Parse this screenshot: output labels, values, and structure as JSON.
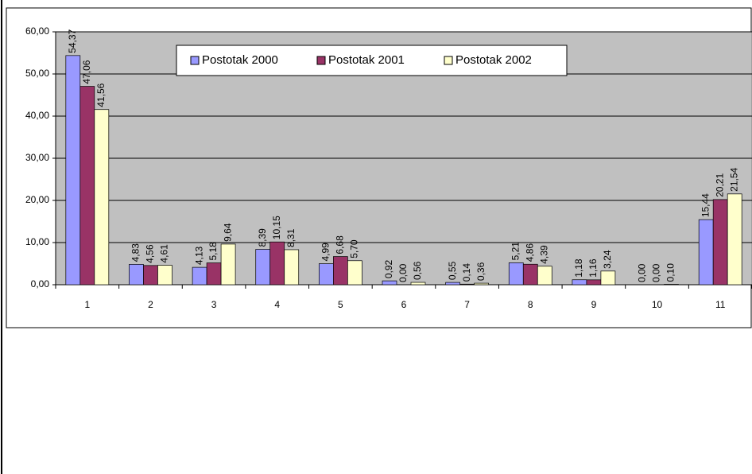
{
  "chart_data": {
    "type": "bar",
    "categories": [
      "1",
      "2",
      "3",
      "4",
      "5",
      "6",
      "7",
      "8",
      "9",
      "10",
      "11"
    ],
    "series": [
      {
        "name": "Postotak 2000",
        "color": "#9999ff",
        "values": [
          54.37,
          4.83,
          4.13,
          8.39,
          4.99,
          0.92,
          0.55,
          5.21,
          1.18,
          0.0,
          15.44
        ],
        "value_labels": [
          "54,37",
          "4,83",
          "4,13",
          "8,39",
          "4,99",
          "0,92",
          "0,55",
          "5,21",
          "1,18",
          "0,00",
          "15,44"
        ]
      },
      {
        "name": "Postotak 2001",
        "color": "#993366",
        "values": [
          47.06,
          4.56,
          5.18,
          10.15,
          6.68,
          0.0,
          0.14,
          4.86,
          1.16,
          0.0,
          20.21
        ],
        "value_labels": [
          "47,06",
          "4,56",
          "5,18",
          "10,15",
          "6,68",
          "0,00",
          "0,14",
          "4,86",
          "1,16",
          "0,00",
          "20,21"
        ]
      },
      {
        "name": "Postotak 2002",
        "color": "#ffffcc",
        "values": [
          41.56,
          4.61,
          9.64,
          8.31,
          5.7,
          0.56,
          0.36,
          4.39,
          3.24,
          0.1,
          21.54
        ],
        "value_labels": [
          "41,56",
          "4,61",
          "9,64",
          "8,31",
          "5,70",
          "0,56",
          "0,36",
          "4,39",
          "3,24",
          "0,10",
          "21,54"
        ]
      }
    ],
    "ylim": [
      0,
      60
    ],
    "yticks": [
      {
        "value": 0,
        "label": "0,00"
      },
      {
        "value": 10,
        "label": "10,00"
      },
      {
        "value": 20,
        "label": "20,00"
      },
      {
        "value": 30,
        "label": "30,00"
      },
      {
        "value": 40,
        "label": "40,00"
      },
      {
        "value": 50,
        "label": "50,00"
      },
      {
        "value": 60,
        "label": "60,00"
      }
    ],
    "grid": true,
    "legend": "top",
    "plot_background": "#c0c0c0"
  }
}
